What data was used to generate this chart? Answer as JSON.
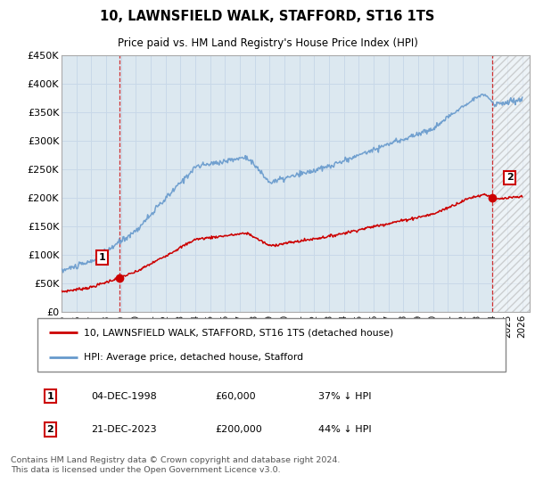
{
  "title": "10, LAWNSFIELD WALK, STAFFORD, ST16 1TS",
  "subtitle": "Price paid vs. HM Land Registry's House Price Index (HPI)",
  "ylabel_ticks": [
    "£0",
    "£50K",
    "£100K",
    "£150K",
    "£200K",
    "£250K",
    "£300K",
    "£350K",
    "£400K",
    "£450K"
  ],
  "ylim": [
    0,
    450000
  ],
  "xlim_start": 1995.0,
  "xlim_end": 2026.5,
  "sale1_x": 1998.92,
  "sale1_y": 60000,
  "sale1_label": "1",
  "sale2_x": 2023.97,
  "sale2_y": 200000,
  "sale2_label": "2",
  "legend_line1": "10, LAWNSFIELD WALK, STAFFORD, ST16 1TS (detached house)",
  "legend_line2": "HPI: Average price, detached house, Stafford",
  "annotation1_date": "04-DEC-1998",
  "annotation1_price": "£60,000",
  "annotation1_hpi": "37% ↓ HPI",
  "annotation2_date": "21-DEC-2023",
  "annotation2_price": "£200,000",
  "annotation2_hpi": "44% ↓ HPI",
  "footnote": "Contains HM Land Registry data © Crown copyright and database right 2024.\nThis data is licensed under the Open Government Licence v3.0.",
  "hpi_color": "#6699cc",
  "price_color": "#cc0000",
  "vline_color": "#cc0000",
  "grid_color": "#c8d8e8",
  "background_color": "#ffffff",
  "plot_bg_color": "#dce8f0"
}
